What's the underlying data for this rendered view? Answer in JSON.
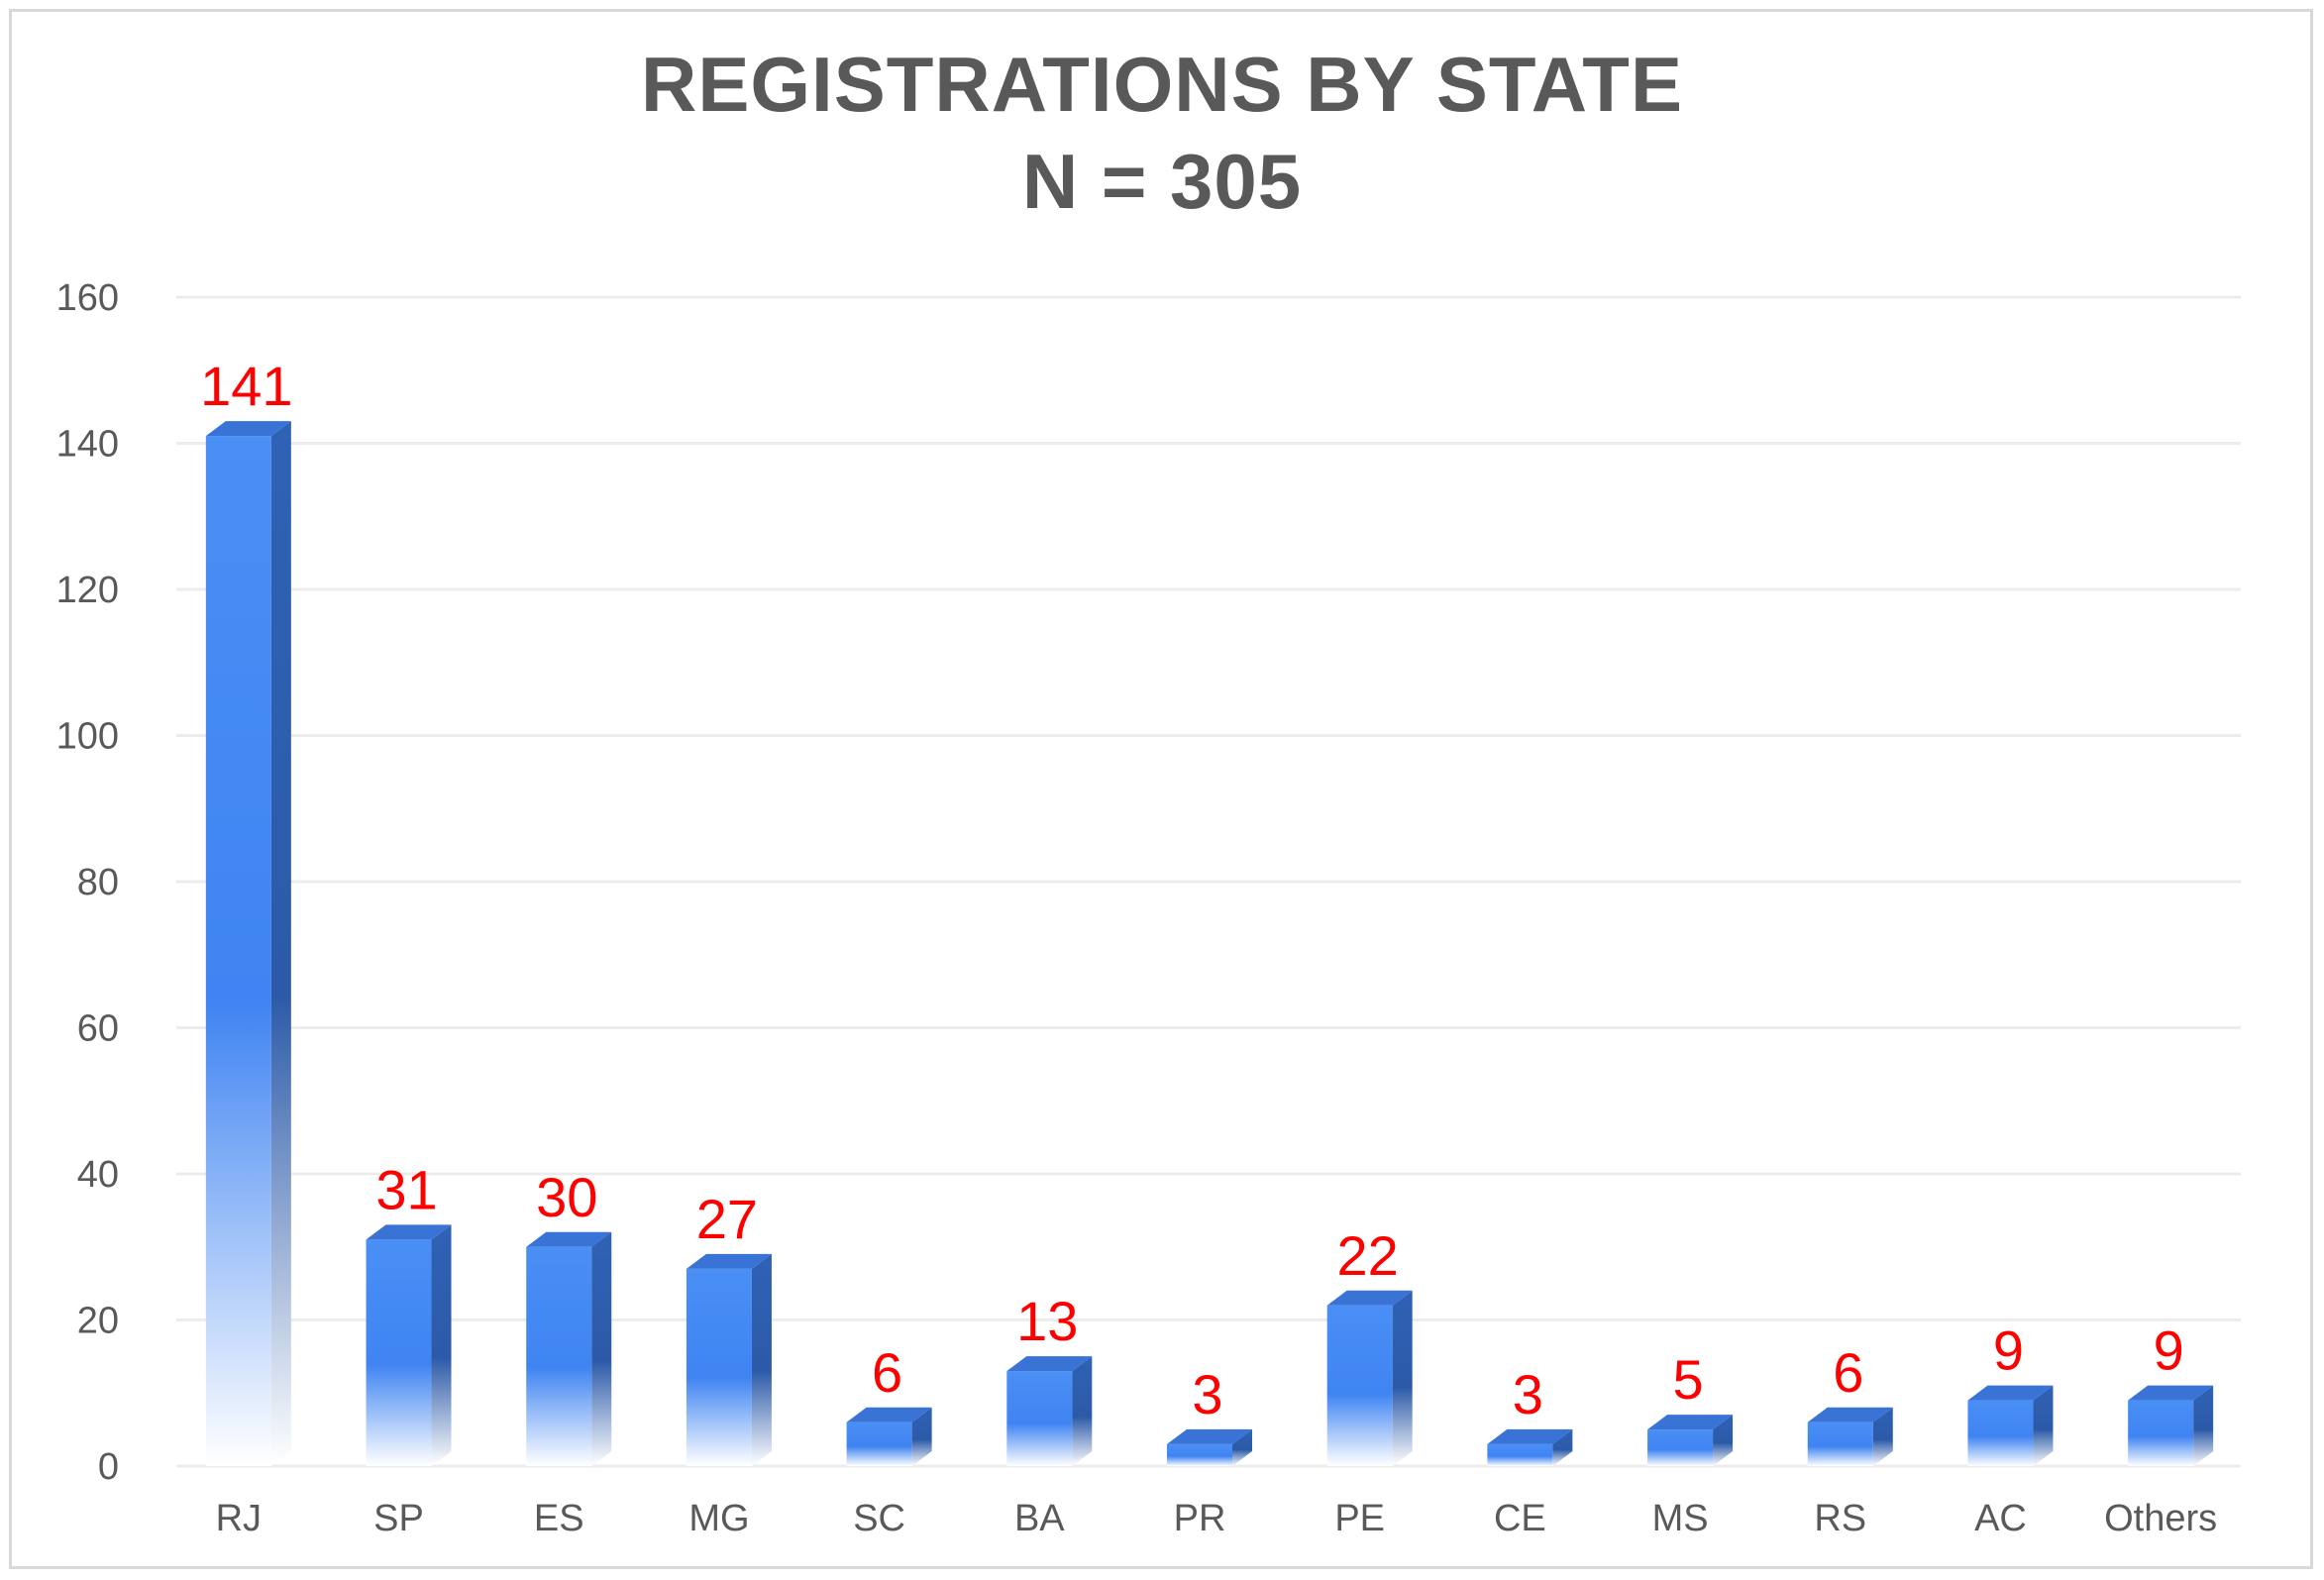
{
  "chart_data": {
    "type": "bar",
    "title": "REGISTRATIONS BY STATE",
    "subtitle": "N = 305",
    "categories": [
      "RJ",
      "SP",
      "ES",
      "MG",
      "SC",
      "BA",
      "PR",
      "PE",
      "CE",
      "MS",
      "RS",
      "AC",
      "Others"
    ],
    "values": [
      141,
      31,
      30,
      27,
      6,
      13,
      3,
      22,
      3,
      5,
      6,
      9,
      9
    ],
    "data_labels": [
      "141",
      "31",
      "30",
      "27",
      "6",
      "13",
      "3",
      "22",
      "3",
      "5",
      "6",
      "9",
      "9"
    ],
    "yticks": [
      "0",
      "20",
      "40",
      "60",
      "80",
      "100",
      "120",
      "140",
      "160"
    ],
    "ylim": [
      0,
      160
    ],
    "xlabel": "",
    "ylabel": "",
    "grid": true,
    "legend": "none",
    "bar_style": "3d-gradient",
    "colors": {
      "bar_front": "#4287f5",
      "bar_side": "#2d5fb3",
      "bar_top": "#3a73d6",
      "data_label": "#ff0000",
      "title": "#595959",
      "axis_text": "#595959",
      "grid": "#ececec"
    }
  }
}
